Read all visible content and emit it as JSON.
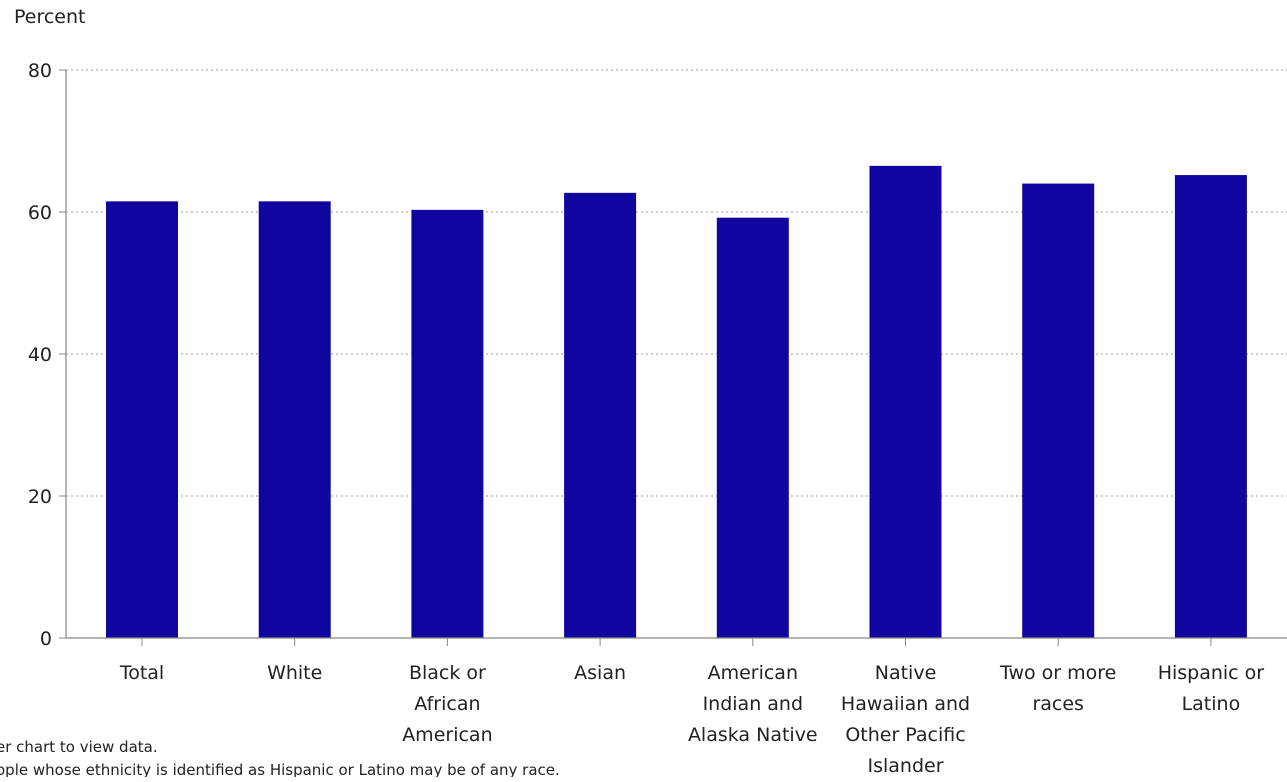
{
  "chart_data": {
    "type": "bar",
    "title": "",
    "ylabel": "Percent",
    "xlabel": "",
    "ylim": [
      0,
      80
    ],
    "yticks": [
      0,
      20,
      40,
      60,
      80
    ],
    "grid": "horizontal dotted",
    "bar_color": "#10069f",
    "categories": [
      [
        "Total"
      ],
      [
        "White"
      ],
      [
        "Black or",
        "African",
        "American"
      ],
      [
        "Asian"
      ],
      [
        "American",
        "Indian and",
        "Alaska Native"
      ],
      [
        "Native",
        "Hawaiian and",
        "Other Pacific",
        "Islander"
      ],
      [
        "Two or more",
        "races"
      ],
      [
        "Hispanic or",
        "Latino"
      ]
    ],
    "values": [
      61.5,
      61.5,
      60.3,
      62.7,
      59.2,
      66.5,
      64.0,
      65.2
    ]
  },
  "notes": {
    "line1": "er chart to view data.",
    "line2": "ople whose ethnicity is identified as Hispanic or Latino may be of any race."
  }
}
